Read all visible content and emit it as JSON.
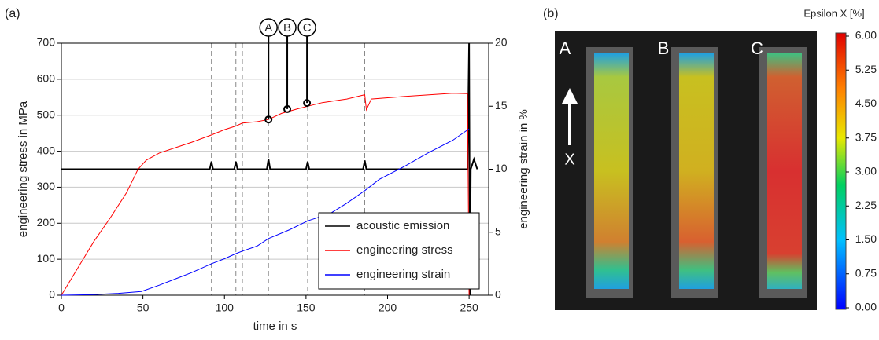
{
  "chart_data": [
    {
      "type": "line",
      "panel_label": "(a)",
      "xlabel": "time in s",
      "ylabel": "engineering stress in MPa",
      "y2label": "engineering strain in %",
      "xlim": [
        0,
        262
      ],
      "xticks": [
        0,
        50,
        100,
        150,
        200,
        250
      ],
      "ylim": [
        0,
        700
      ],
      "yticks": [
        0,
        100,
        200,
        300,
        400,
        500,
        600,
        700
      ],
      "y2lim": [
        0,
        20
      ],
      "y2ticks": [
        0,
        5,
        10,
        15,
        20
      ],
      "grid": true,
      "legend": "lower right",
      "vlines": [
        92,
        107,
        111,
        127,
        151,
        186
      ],
      "annotations": [
        {
          "label": "A",
          "x": 127,
          "y": 488
        },
        {
          "label": "B",
          "x": 138.5,
          "y": 517
        },
        {
          "label": "C",
          "x": 150.6,
          "y": 534
        }
      ],
      "series": [
        {
          "name": "acoustic emission",
          "color": "#000000",
          "axis": "y2",
          "x": [
            0,
            91,
            92,
            93,
            106,
            107,
            108,
            126,
            127,
            128,
            150,
            151,
            152,
            185,
            186,
            187,
            249,
            250,
            250.5,
            251,
            253,
            255
          ],
          "values": [
            10,
            10,
            10.6,
            10,
            10,
            10.6,
            10,
            10,
            10.8,
            10,
            10,
            10.6,
            10,
            10,
            10.7,
            10,
            10,
            20,
            0,
            10,
            10.8,
            10
          ]
        },
        {
          "name": "engineering stress",
          "color": "#ff0000",
          "x": [
            0,
            10,
            20,
            30,
            40,
            47,
            52,
            60,
            70,
            80,
            92,
            100,
            107,
            111,
            120,
            127,
            135,
            145,
            151,
            160,
            175,
            186,
            187,
            190,
            210,
            230,
            240,
            249,
            250
          ],
          "values": [
            0,
            75,
            150,
            215,
            285,
            350,
            375,
            395,
            410,
            425,
            445,
            460,
            470,
            478,
            482,
            488,
            505,
            518,
            525,
            535,
            545,
            557,
            515,
            545,
            552,
            558,
            561,
            560,
            0
          ]
        },
        {
          "name": "engineering strain",
          "color": "#0000ff",
          "axis": "y2",
          "x": [
            0,
            20,
            35,
            49,
            60,
            70,
            80,
            92,
            100,
            107,
            111,
            120,
            127,
            140,
            151,
            165,
            175,
            186,
            195,
            210,
            225,
            240,
            250
          ],
          "values": [
            0,
            0.05,
            0.15,
            0.3,
            0.8,
            1.3,
            1.8,
            2.5,
            2.9,
            3.3,
            3.5,
            3.9,
            4.5,
            5.2,
            5.9,
            6.5,
            7.3,
            8.3,
            9.2,
            10.2,
            11.3,
            12.3,
            13.2
          ]
        }
      ]
    },
    {
      "type": "heatmap",
      "panel_label": "(b)",
      "colorbar_title": "Epsilon X [%]",
      "clim": [
        0,
        6
      ],
      "cticks": [
        {
          "value": 0,
          "label": "0.00"
        },
        {
          "value": 0.75,
          "label": "0.75"
        },
        {
          "value": 1.5,
          "label": "1.50"
        },
        {
          "value": 2.25,
          "label": "2.25"
        },
        {
          "value": 3,
          "label": "3.00"
        },
        {
          "value": 3.75,
          "label": "3.75"
        },
        {
          "value": 4.5,
          "label": "4.50"
        },
        {
          "value": 5.25,
          "label": "5.25"
        },
        {
          "value": 6,
          "label": "6.00"
        }
      ],
      "images": [
        "A",
        "B",
        "C"
      ],
      "arrow_label": "X"
    }
  ]
}
